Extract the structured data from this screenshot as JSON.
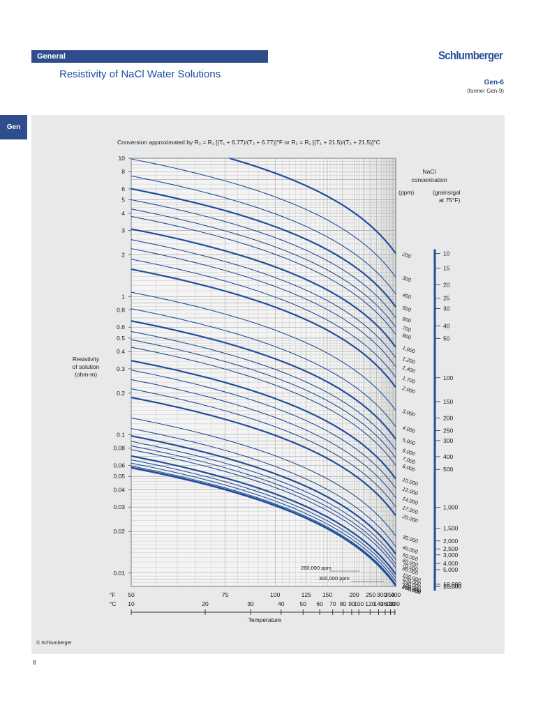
{
  "header": {
    "section": "General",
    "title": "Resistivity of NaCl Water Solutions",
    "brand": "Schlumberger",
    "chart_id": "Gen-6",
    "former": "(former Gen-9)"
  },
  "side_tab": "Gen",
  "footer": {
    "copyright": "© Schlumberger",
    "page_number": "8"
  },
  "colors": {
    "accent": "#2f4d8c",
    "curve": "#1f4e9a",
    "panel": "#e8e9ea",
    "grid": "#9a9a9a"
  },
  "chart_data": {
    "type": "line",
    "formula": "Conversion approximated by R₂ = R₁ [(T₁ + 6.77)/(T₂ + 6.77)]°F or R₂ = R₁ [(T₁ + 21.5)/(T₂ + 21.5)]°C",
    "ylabel": [
      "Resistivity",
      "of solution",
      "(ohm-m)"
    ],
    "xlabel": "Temperature",
    "y_scale": "log",
    "ylim": [
      0.008,
      10
    ],
    "x_scale": "reciprocal (T + 6.77 °F)",
    "xlim_F": [
      50,
      400
    ],
    "y_ticks": [
      10,
      8,
      6,
      5,
      4,
      3,
      2,
      1,
      0.8,
      0.6,
      0.5,
      0.4,
      0.3,
      0.2,
      0.1,
      0.08,
      0.06,
      0.05,
      0.04,
      0.03,
      0.02,
      0.01
    ],
    "y_tick_labels": [
      "10",
      "8",
      "6",
      "5",
      "4",
      "3",
      "2",
      "1",
      "0.8",
      "0.6",
      "0.5",
      "0.4",
      "0.3",
      "0.2",
      "0.1",
      "0.08",
      "0.06",
      "0.05",
      "0.04",
      "0.03",
      "0.02",
      "0.01"
    ],
    "x_ticks_F": [
      50,
      75,
      100,
      125,
      150,
      200,
      250,
      300,
      350,
      400
    ],
    "x_tick_labels_F": [
      "50",
      "75",
      "100",
      "125",
      "150",
      "200",
      "250",
      "300",
      "350",
      "400"
    ],
    "x_ticks_C": [
      10,
      20,
      30,
      40,
      50,
      60,
      70,
      80,
      90,
      100,
      120,
      140,
      160,
      180,
      200
    ],
    "x_tick_labels_C": [
      "10",
      "20",
      "30",
      "40",
      "50",
      "60",
      "70",
      "80",
      "90",
      "100",
      "120",
      "140",
      "160",
      "180",
      "200"
    ],
    "unit_F": "°F",
    "unit_C": "°C",
    "grid": true,
    "concentration_header": [
      "NaCl",
      "concentration"
    ],
    "ppm_header": "(ppm)",
    "grains_header": [
      "(grains/gal",
      "at 75°F)"
    ],
    "series_ppm": [
      {
        "label": "200",
        "r400": 2.05,
        "bold": true
      },
      {
        "label": "300",
        "r400": 1.38
      },
      {
        "label": "400",
        "r400": 1.04
      },
      {
        "label": "500",
        "r400": 0.84,
        "bold": true
      },
      {
        "label": "600",
        "r400": 0.7
      },
      {
        "label": "700",
        "r400": 0.6
      },
      {
        "label": "800",
        "r400": 0.53
      },
      {
        "label": "1,000",
        "r400": 0.43,
        "bold": true
      },
      {
        "label": "1,200",
        "r400": 0.36
      },
      {
        "label": "1,400",
        "r400": 0.31
      },
      {
        "label": "1,700",
        "r400": 0.26
      },
      {
        "label": "2,000",
        "r400": 0.22,
        "bold": true
      },
      {
        "label": "3,000",
        "r400": 0.15
      },
      {
        "label": "4,000",
        "r400": 0.114
      },
      {
        "label": "5,000",
        "r400": 0.093,
        "bold": true
      },
      {
        "label": "6,000",
        "r400": 0.078
      },
      {
        "label": "7,000",
        "r400": 0.068
      },
      {
        "label": "8,000",
        "r400": 0.06
      },
      {
        "label": "10,000",
        "r400": 0.048,
        "bold": true
      },
      {
        "label": "12,000",
        "r400": 0.041
      },
      {
        "label": "14,000",
        "r400": 0.035
      },
      {
        "label": "17,000",
        "r400": 0.03
      },
      {
        "label": "20,000",
        "r400": 0.026,
        "bold": true
      },
      {
        "label": "30,000",
        "r400": 0.0185
      },
      {
        "label": "40,000",
        "r400": 0.0155
      },
      {
        "label": "50,000",
        "r400": 0.0137,
        "bold": true
      },
      {
        "label": "60,000",
        "r400": 0.0125
      },
      {
        "label": "70,000",
        "r400": 0.0116
      },
      {
        "label": "80,000",
        "r400": 0.0109
      },
      {
        "label": "100,000",
        "r400": 0.0098,
        "bold": true
      },
      {
        "label": "120,000",
        "r400": 0.0092
      },
      {
        "label": "140,000",
        "r400": 0.0087
      },
      {
        "label": "170,000",
        "r400": 0.0083
      },
      {
        "label": "200,000",
        "r400": 0.0081,
        "bold": true
      },
      {
        "label": "250,000",
        "r400": 0.008
      }
    ],
    "grains_scale": [
      {
        "label": "10",
        "ppm": 171
      },
      {
        "label": "15",
        "ppm": 257
      },
      {
        "label": "20",
        "ppm": 342
      },
      {
        "label": "25",
        "ppm": 428
      },
      {
        "label": "30",
        "ppm": 513
      },
      {
        "label": "40",
        "ppm": 684
      },
      {
        "label": "50",
        "ppm": 855
      },
      {
        "label": "100",
        "ppm": 1710
      },
      {
        "label": "150",
        "ppm": 2565
      },
      {
        "label": "200",
        "ppm": 3420
      },
      {
        "label": "250",
        "ppm": 4275
      },
      {
        "label": "300",
        "ppm": 5130
      },
      {
        "label": "400",
        "ppm": 6840
      },
      {
        "label": "500",
        "ppm": 8550
      },
      {
        "label": "1,000",
        "ppm": 17100
      },
      {
        "label": "1,500",
        "ppm": 25650
      },
      {
        "label": "2,000",
        "ppm": 34200
      },
      {
        "label": "2,500",
        "ppm": 42750
      },
      {
        "label": "3,000",
        "ppm": 51300
      },
      {
        "label": "4,000",
        "ppm": 68400
      },
      {
        "label": "5,000",
        "ppm": 85500
      },
      {
        "label": "10,000",
        "ppm": 171000
      },
      {
        "label": "15,000",
        "ppm": 256500
      },
      {
        "label": "20,000",
        "ppm": 342000
      }
    ],
    "annotations": [
      {
        "text": "280,000 ppm"
      },
      {
        "text": "300,000 ppm"
      }
    ]
  }
}
